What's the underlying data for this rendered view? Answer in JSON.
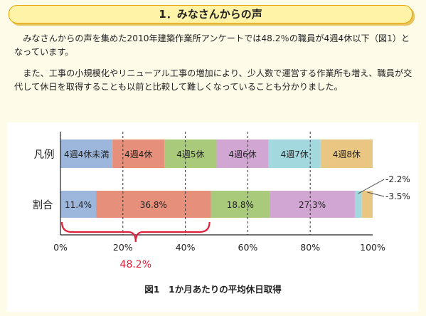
{
  "header": {
    "title": "1．みなさんからの声"
  },
  "paragraphs": [
    "みなさんからの声を集めた2010年建築作業所アンケートでは48.2％の職員が4週4休以下（図1）となっています。",
    "また、工事の小規模化やリニューアル工事の増加により、少人数で運営する作業所も増え、職員が交代して休日を取得することも以前と比較して難しくなっていることも分かりました。"
  ],
  "chart_data": {
    "type": "bar",
    "orientation": "horizontal-stacked",
    "rows": [
      "凡例",
      "割合"
    ],
    "legend_row": {
      "label": "凡例",
      "items": [
        {
          "name": "4週4休未満",
          "color": "#9db7dc"
        },
        {
          "name": "4週4休",
          "color": "#e6907c"
        },
        {
          "name": "4週5休",
          "color": "#a9c97b"
        },
        {
          "name": "4週6休",
          "color": "#d2a6d2"
        },
        {
          "name": "4週7休",
          "color": "#a3d9de"
        },
        {
          "name": "4週8休",
          "color": "#e9c681"
        }
      ]
    },
    "series": [
      {
        "name": "4週4休未満",
        "value": 11.4,
        "label": "11.4%",
        "color": "#9db7dc"
      },
      {
        "name": "4週4休",
        "value": 36.8,
        "label": "36.8%",
        "color": "#e6907c"
      },
      {
        "name": "4週5休",
        "value": 18.8,
        "label": "18.8%",
        "color": "#a9c97b"
      },
      {
        "name": "4週6休",
        "value": 27.3,
        "label": "27.3%",
        "color": "#d2a6d2"
      },
      {
        "name": "4週7休",
        "value": 2.2,
        "label": "2.2%",
        "color": "#a3d9de"
      },
      {
        "name": "4週8休",
        "value": 3.5,
        "label": "3.5%",
        "color": "#e9c681"
      }
    ],
    "ratio_label": "割合",
    "x_ticks": [
      "0%",
      "20%",
      "40%",
      "60%",
      "80%",
      "100%"
    ],
    "xlim": [
      0,
      100
    ],
    "grid": "dashed-vertical",
    "annotation": {
      "text": "48.2%",
      "color": "#e0203a",
      "spans": [
        0,
        48.2
      ]
    },
    "caption": "図1　1か月あたりの平均休日取得"
  }
}
